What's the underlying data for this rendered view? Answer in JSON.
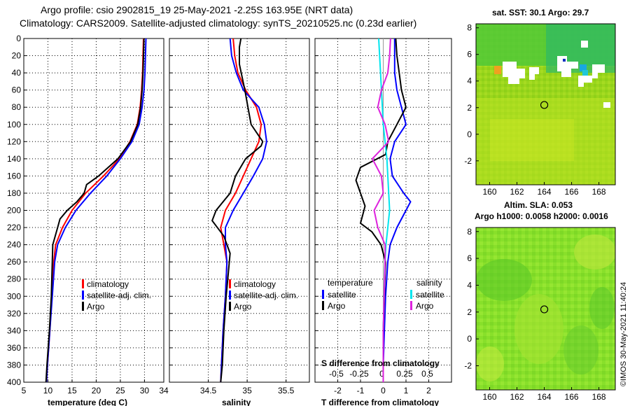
{
  "title_line1": "Argo profile: csio 2902815_19 25-May-2021 -2.25S 163.95E (NRT data)",
  "title_line2": "Climatology: CARS2009. Satellite-adjusted climatology: synTS_20210525.nc (0.23d earlier)",
  "timestamp": "©IMOS 30-May-2021 11:40:24",
  "colors": {
    "climatology": "#ff0000",
    "satellite": "#0000ff",
    "argo": "#000000",
    "sat_salinity": "#00e5ee",
    "argo_salinity": "#dd22dd"
  },
  "chart_data": [
    {
      "id": "temperature",
      "type": "line",
      "xlabel": "temperature (deg C)",
      "xlim": [
        5,
        34
      ],
      "xticks": [
        5,
        10,
        15,
        20,
        25,
        30
      ],
      "ylim": [
        400,
        0
      ],
      "yticks": [
        0,
        20,
        40,
        60,
        80,
        100,
        120,
        140,
        160,
        180,
        200,
        220,
        240,
        260,
        280,
        300,
        320,
        340,
        360,
        380,
        400
      ],
      "grid": true,
      "legend": [
        "climatology",
        "satellite-adj. clim.",
        "Argo"
      ],
      "series": [
        {
          "name": "climatology",
          "color": "red",
          "depth": [
            0,
            20,
            40,
            60,
            80,
            100,
            120,
            140,
            160,
            180,
            200,
            220,
            240,
            260,
            300,
            340,
            380,
            400
          ],
          "values": [
            29.8,
            29.7,
            29.6,
            29.4,
            29.1,
            28.5,
            27.0,
            24.8,
            21.5,
            17.8,
            15.0,
            13.0,
            11.6,
            11.2,
            10.8,
            10.4,
            9.9,
            9.7
          ]
        },
        {
          "name": "satellite-adj. clim.",
          "color": "blue",
          "depth": [
            0,
            20,
            40,
            60,
            80,
            100,
            120,
            140,
            160,
            180,
            200,
            220,
            240,
            260,
            300,
            340,
            380,
            400
          ],
          "values": [
            30.3,
            30.2,
            30.1,
            29.9,
            29.5,
            28.9,
            27.4,
            25.0,
            22.2,
            18.8,
            15.8,
            13.6,
            12.0,
            11.4,
            10.9,
            10.4,
            9.9,
            9.7
          ]
        },
        {
          "name": "Argo",
          "color": "black",
          "depth": [
            0,
            20,
            40,
            60,
            80,
            100,
            120,
            140,
            160,
            170,
            180,
            190,
            200,
            210,
            220,
            240,
            260,
            300,
            340,
            380,
            400
          ],
          "values": [
            29.9,
            29.8,
            29.7,
            29.5,
            29.2,
            28.6,
            27.1,
            24.5,
            20.5,
            18.0,
            17.5,
            16.0,
            14.0,
            12.5,
            12.0,
            11.0,
            10.9,
            10.7,
            10.3,
            9.8,
            9.6
          ]
        }
      ]
    },
    {
      "id": "salinity",
      "type": "line",
      "xlabel": "salinity",
      "xlim": [
        34,
        35.8
      ],
      "xticks": [
        34.5,
        35,
        35.5
      ],
      "ylim": [
        400,
        0
      ],
      "grid": true,
      "legend": [
        "climatology",
        "satellite-adj. clim.",
        "Argo"
      ],
      "series": [
        {
          "name": "climatology",
          "color": "red",
          "depth": [
            0,
            20,
            40,
            60,
            80,
            100,
            120,
            140,
            160,
            180,
            200,
            220,
            240,
            260,
            300,
            340,
            380,
            400
          ],
          "values": [
            34.82,
            34.84,
            34.88,
            34.98,
            35.12,
            35.18,
            35.15,
            35.05,
            34.95,
            34.85,
            34.72,
            34.66,
            34.7,
            34.74,
            34.72,
            34.69,
            34.67,
            34.66
          ]
        },
        {
          "name": "satellite-adj. clim.",
          "color": "blue",
          "depth": [
            0,
            20,
            40,
            60,
            80,
            100,
            120,
            140,
            160,
            180,
            200,
            220,
            240,
            260,
            300,
            340,
            380,
            400
          ],
          "values": [
            34.78,
            34.8,
            34.86,
            34.95,
            35.15,
            35.22,
            35.25,
            35.2,
            35.08,
            34.95,
            34.82,
            34.72,
            34.72,
            34.74,
            34.72,
            34.69,
            34.67,
            34.66
          ]
        },
        {
          "name": "Argo",
          "color": "black",
          "depth": [
            0,
            10,
            30,
            60,
            80,
            100,
            120,
            125,
            140,
            160,
            180,
            200,
            212,
            230,
            250,
            260,
            300,
            340,
            380,
            400
          ],
          "values": [
            34.92,
            34.9,
            34.9,
            34.97,
            35.01,
            35.05,
            35.2,
            35.18,
            34.98,
            34.85,
            34.78,
            34.6,
            34.55,
            34.7,
            34.78,
            34.77,
            34.73,
            34.7,
            34.68,
            34.66
          ]
        }
      ]
    },
    {
      "id": "differences",
      "type": "line",
      "xlabel": "T difference from climatology",
      "xlabel_top": "S difference from climatology",
      "xlim": [
        -3,
        3
      ],
      "xticks": [
        -2,
        -1,
        0,
        1,
        2
      ],
      "xticks_top": [
        -0.5,
        -0.25,
        0,
        0.25,
        0.5
      ],
      "ylim": [
        400,
        0
      ],
      "grid": true,
      "legend_left_title": "temperature",
      "legend_right_title": "salinity",
      "legend": [
        "satellite",
        "Argo",
        "satellite",
        "Argo"
      ],
      "series": [
        {
          "name": "T satellite",
          "color": "blue",
          "depth": [
            0,
            20,
            40,
            60,
            80,
            100,
            120,
            140,
            160,
            180,
            190,
            200,
            220,
            240,
            260,
            300,
            340,
            380,
            400
          ],
          "values": [
            0.5,
            0.5,
            0.5,
            0.6,
            0.8,
            1.0,
            0.5,
            0.3,
            0.4,
            0.9,
            1.2,
            1.0,
            0.6,
            0.3,
            0.2,
            0.1,
            0.05,
            0.0,
            0.0
          ]
        },
        {
          "name": "T Argo",
          "color": "black",
          "depth": [
            0,
            20,
            40,
            60,
            80,
            100,
            120,
            135,
            150,
            165,
            180,
            195,
            205,
            215,
            225,
            240,
            260,
            300,
            340,
            380,
            400
          ],
          "values": [
            0.55,
            0.6,
            0.7,
            0.8,
            1.0,
            0.6,
            0.2,
            0.1,
            -1.0,
            -1.2,
            -1.0,
            -0.8,
            -0.9,
            -1.0,
            -0.5,
            -0.1,
            0.1,
            0.05,
            0.0,
            0.0,
            0.0
          ]
        },
        {
          "name": "S satellite",
          "color": "cyan",
          "depth": [
            0,
            20,
            40,
            60,
            80,
            100,
            120,
            140,
            160,
            180,
            200,
            220,
            240,
            260,
            300,
            340,
            380,
            400
          ],
          "values": [
            -0.05,
            -0.04,
            -0.03,
            -0.02,
            -0.01,
            0.0,
            0.02,
            0.04,
            0.05,
            0.06,
            0.07,
            0.05,
            0.03,
            0.02,
            0.01,
            0.0,
            0.0,
            0.0
          ]
        },
        {
          "name": "S Argo",
          "color": "magenta",
          "depth": [
            0,
            20,
            40,
            60,
            80,
            100,
            120,
            140,
            160,
            180,
            200,
            220,
            240,
            260,
            300,
            340,
            380,
            400
          ],
          "values": [
            0.08,
            0.07,
            0.05,
            -0.02,
            -0.06,
            0.02,
            0.06,
            -0.12,
            -0.02,
            0.0,
            -0.1,
            -0.06,
            0.02,
            0.02,
            0.01,
            0.0,
            0.0,
            0.0
          ]
        }
      ]
    },
    {
      "id": "sst_map",
      "type": "heatmap",
      "title": "sat. SST: 30.1  Argo: 29.7",
      "xticks": [
        160,
        162,
        164,
        166,
        168
      ],
      "yticks": [
        8,
        6,
        4,
        2,
        0,
        -2
      ],
      "xlim": [
        159,
        169.2
      ],
      "ylim": [
        -3.8,
        8.3
      ],
      "marker_lon": 164,
      "marker_lat": 2.2
    },
    {
      "id": "sla_map",
      "type": "heatmap",
      "title_line1": "Altim. SLA: 0.053",
      "title_line2": "Argo h1000: 0.0058 h2000: 0.0016",
      "xticks": [
        160,
        162,
        164,
        166,
        168
      ],
      "yticks": [
        8,
        6,
        4,
        2,
        0,
        -2
      ],
      "xlim": [
        159,
        169.2
      ],
      "ylim": [
        -3.8,
        8.3
      ],
      "marker_lon": 164,
      "marker_lat": 2.2
    }
  ]
}
